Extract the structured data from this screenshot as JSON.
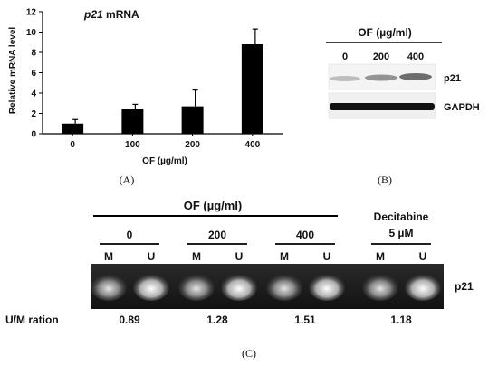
{
  "panel_a": {
    "caption": "(A)",
    "chart_data": {
      "type": "bar",
      "title_gene": "p21",
      "title_rest": " mRNA",
      "categories": [
        "0",
        "100",
        "200",
        "400"
      ],
      "values": [
        1.0,
        2.4,
        2.7,
        8.8
      ],
      "errors": [
        0.4,
        0.5,
        1.6,
        1.5
      ],
      "xlabel": "OF (µg/ml)",
      "ylabel": "Relative mRNA level",
      "ylim": [
        0,
        12
      ],
      "yticks": [
        "0",
        "2",
        "4",
        "6",
        "8",
        "10",
        "12"
      ],
      "bar_color": "#000000"
    }
  },
  "panel_b": {
    "caption": "(B)",
    "header": "OF (µg/ml)",
    "lanes": [
      "0",
      "200",
      "400"
    ],
    "bands": [
      {
        "label": "p21",
        "intensities": [
          0.35,
          0.55,
          0.75
        ]
      },
      {
        "label": "GAPDH",
        "intensities": [
          0.95,
          0.95,
          0.95
        ]
      }
    ]
  },
  "panel_c": {
    "caption": "(C)",
    "header": "OF (µg/ml)",
    "groups": [
      {
        "label": "0"
      },
      {
        "label": "200"
      },
      {
        "label": "400"
      }
    ],
    "decitabine_label_1": "Decitabine",
    "decitabine_label_2": "5 µM",
    "lane_labels": [
      "M",
      "U",
      "M",
      "U",
      "M",
      "U",
      "M",
      "U"
    ],
    "band_label": "p21",
    "ratio_label": "U/M ration",
    "ratios": [
      "0.89",
      "1.28",
      "1.51",
      "1.18"
    ]
  }
}
